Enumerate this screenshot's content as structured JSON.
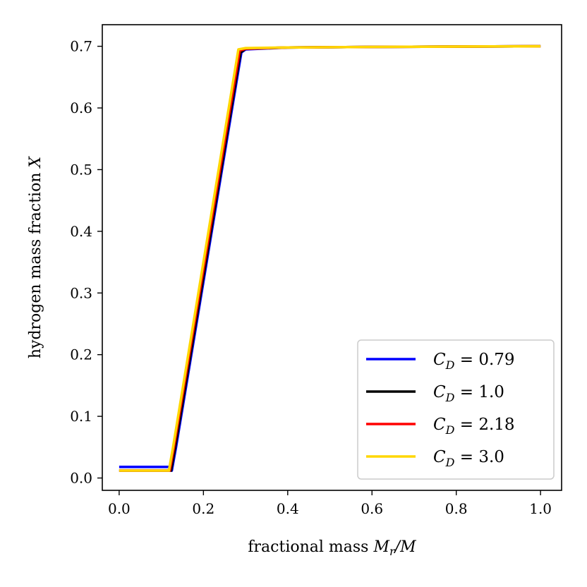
{
  "chart_data": {
    "type": "line",
    "title": "",
    "xlabel": "fractional mass M_r/M",
    "ylabel": "hydrogen mass fraction X",
    "xlim": [
      -0.04,
      1.05
    ],
    "ylim": [
      -0.02,
      0.735
    ],
    "xticks": [
      0.0,
      0.2,
      0.4,
      0.6,
      0.8,
      1.0
    ],
    "xtick_labels": [
      "0.0",
      "0.2",
      "0.4",
      "0.6",
      "0.8",
      "1.0"
    ],
    "yticks": [
      0.0,
      0.1,
      0.2,
      0.3,
      0.4,
      0.5,
      0.6,
      0.7
    ],
    "ytick_labels": [
      "0.0",
      "0.1",
      "0.2",
      "0.3",
      "0.4",
      "0.5",
      "0.6",
      "0.7"
    ],
    "grid": false,
    "legend_position": "bottom-right",
    "series": [
      {
        "name": "C_D = 0.79",
        "color": "#0000ff",
        "x": [
          0.0,
          0.12,
          0.125,
          0.135,
          0.29,
          0.3,
          0.4,
          0.6,
          1.0
        ],
        "y": [
          0.018,
          0.018,
          0.012,
          0.05,
          0.69,
          0.695,
          0.698,
          0.699,
          0.7
        ]
      },
      {
        "name": "C_D = 1.0",
        "color": "#000000",
        "x": [
          0.0,
          0.12,
          0.123,
          0.133,
          0.288,
          0.3,
          0.4,
          0.6,
          1.0
        ],
        "y": [
          0.012,
          0.012,
          0.012,
          0.05,
          0.69,
          0.696,
          0.698,
          0.699,
          0.7
        ]
      },
      {
        "name": "C_D = 2.18",
        "color": "#ff0000",
        "x": [
          0.0,
          0.118,
          0.12,
          0.13,
          0.286,
          0.3,
          0.4,
          0.6,
          1.0
        ],
        "y": [
          0.012,
          0.012,
          0.012,
          0.05,
          0.693,
          0.696,
          0.698,
          0.699,
          0.7
        ]
      },
      {
        "name": "C_D = 3.0",
        "color": "#ffd700",
        "x": [
          0.0,
          0.115,
          0.118,
          0.128,
          0.283,
          0.3,
          0.4,
          0.6,
          1.0
        ],
        "y": [
          0.012,
          0.012,
          0.012,
          0.05,
          0.695,
          0.697,
          0.698,
          0.699,
          0.7
        ]
      }
    ],
    "legend": {
      "entries": [
        {
          "var": "C",
          "sub": "D",
          "rhs": " = 0.79",
          "color": "#0000ff"
        },
        {
          "var": "C",
          "sub": "D",
          "rhs": " = 1.0",
          "color": "#000000"
        },
        {
          "var": "C",
          "sub": "D",
          "rhs": " = 2.18",
          "color": "#ff0000"
        },
        {
          "var": "C",
          "sub": "D",
          "rhs": " = 3.0",
          "color": "#ffd700"
        }
      ]
    },
    "xlabel_parts": {
      "text": "fractional mass ",
      "var": "M",
      "sub": "r",
      "tail": "/M"
    },
    "ylabel_parts": {
      "text": "hydrogen mass fraction ",
      "var": "X"
    }
  }
}
